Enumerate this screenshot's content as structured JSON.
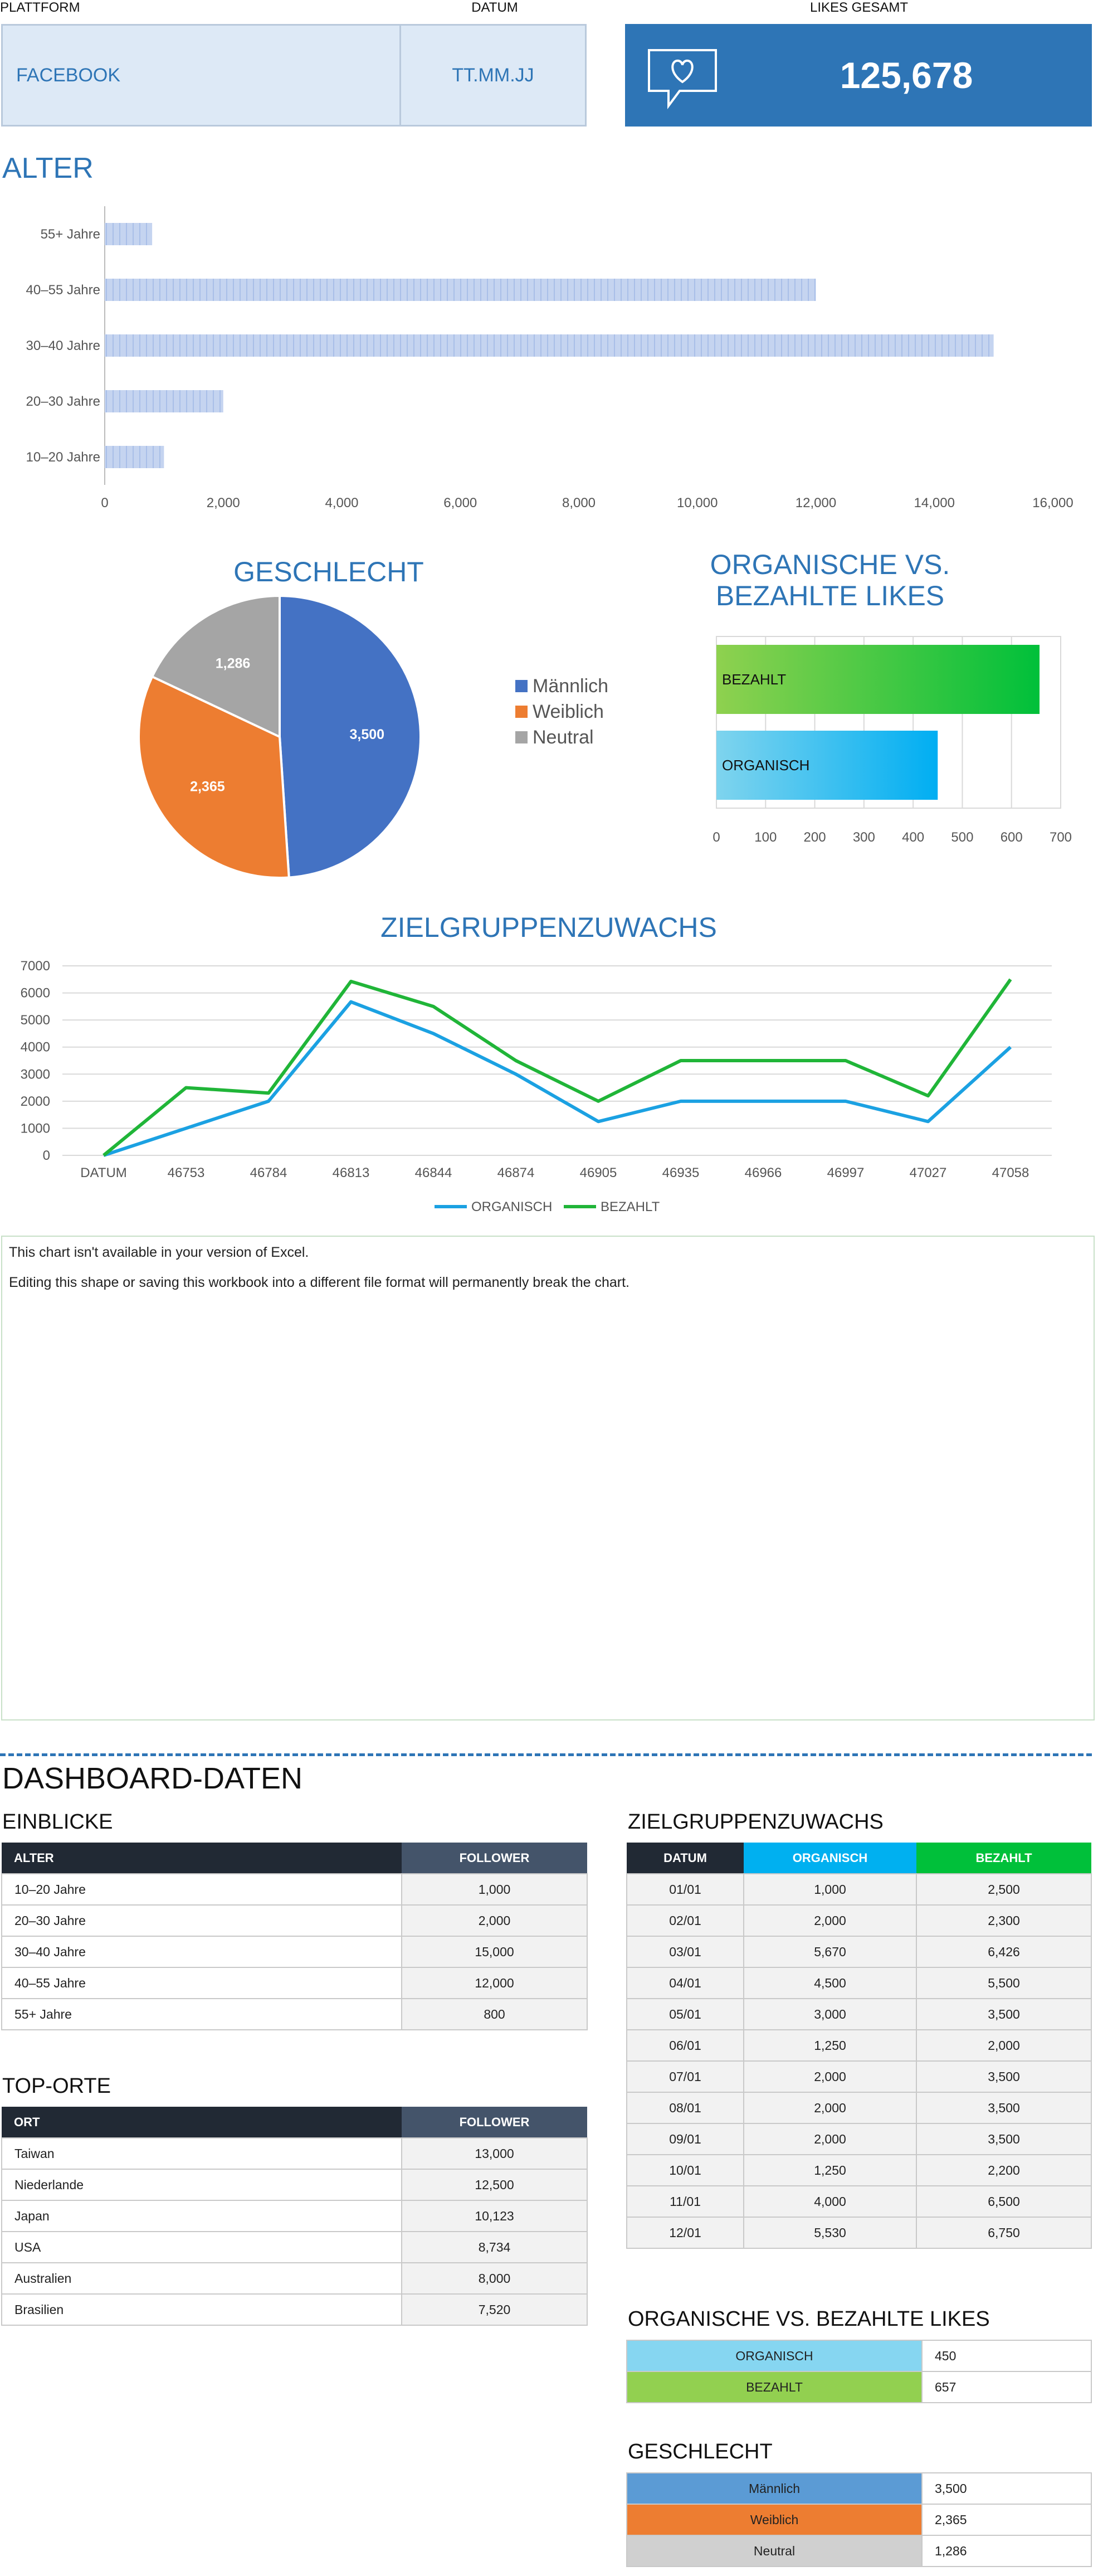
{
  "header": {
    "platform_label": "PLATTFORM",
    "date_label": "DATUM",
    "likes_label": "LIKES GESAMT",
    "platform_value": "FACEBOOK",
    "date_value": "TT.MM.JJ",
    "likes_value": "125,678",
    "likes_icon": "heart-speech-bubble-icon"
  },
  "colors": {
    "accent": "#2e75b6",
    "kpi_bg": "#dde9f6",
    "dark_header": "#212934",
    "slate_header": "#44546a",
    "organic_line": "#1ba1e2",
    "paid_line": "#20b538"
  },
  "chart_data": [
    {
      "type": "bar",
      "orientation": "horizontal",
      "title": "ALTER",
      "categories": [
        "10–20 Jahre",
        "20–30 Jahre",
        "30–40 Jahre",
        "40–55 Jahre",
        "55+ Jahre"
      ],
      "values": [
        1000,
        2000,
        15000,
        12000,
        800
      ],
      "xlim": [
        0,
        16000
      ],
      "xticks": [
        "0",
        "2,000",
        "4,000",
        "6,000",
        "8,000",
        "10,000",
        "12,000",
        "14,000",
        "16,000"
      ]
    },
    {
      "type": "pie",
      "title": "GESCHLECHT",
      "labels": [
        "Männlich",
        "Weiblich",
        "Neutral"
      ],
      "values": [
        3500,
        2365,
        1286
      ],
      "value_labels": [
        "3,500",
        "2,365",
        "1,286"
      ],
      "colors": [
        "#4472c4",
        "#ed7d31",
        "#a5a5a5"
      ],
      "legend": "right"
    },
    {
      "type": "bar",
      "orientation": "horizontal",
      "title": "ORGANISCHE VS. BEZAHLTE LIKES",
      "categories": [
        "ORGANISCH",
        "BEZAHLT"
      ],
      "values": [
        450,
        657
      ],
      "xlim": [
        0,
        700
      ],
      "xticks": [
        "0",
        "100",
        "200",
        "300",
        "400",
        "500",
        "600",
        "700"
      ]
    },
    {
      "type": "line",
      "title": "ZIELGRUPPENZUWACHS",
      "categories": [
        "DATUM",
        "46753",
        "46784",
        "46813",
        "46844",
        "46874",
        "46905",
        "46935",
        "46966",
        "46997",
        "47027",
        "47058"
      ],
      "series": [
        {
          "name": "ORGANISCH",
          "values": [
            0,
            1000,
            2000,
            5670,
            4500,
            3000,
            1250,
            2000,
            2000,
            2000,
            1250,
            4000
          ],
          "color": "#1ba1e2"
        },
        {
          "name": "BEZAHLT",
          "values": [
            0,
            2500,
            2300,
            6426,
            5500,
            3500,
            2000,
            3500,
            3500,
            3500,
            2200,
            6500
          ],
          "color": "#20b538"
        }
      ],
      "ylim": [
        0,
        7000
      ],
      "yticks": [
        "0",
        "1000",
        "2000",
        "3000",
        "4000",
        "5000",
        "6000",
        "7000"
      ],
      "legend": "bottom"
    }
  ],
  "unavailable_chart": {
    "line1": "This chart isn't available in your version of Excel.",
    "line2": "Editing this shape or saving this workbook into a different file format will permanently break the chart."
  },
  "dashboard": {
    "title": "DASHBOARD-DATEN",
    "insights": {
      "title": "EINBLICKE",
      "headers": [
        "ALTER",
        "FOLLOWER"
      ],
      "rows": [
        [
          "10–20 Jahre",
          "1,000"
        ],
        [
          "20–30 Jahre",
          "2,000"
        ],
        [
          "30–40 Jahre",
          "15,000"
        ],
        [
          "40–55 Jahre",
          "12,000"
        ],
        [
          "55+ Jahre",
          "800"
        ]
      ]
    },
    "top_places": {
      "title": "TOP-ORTE",
      "headers": [
        "ORT",
        "FOLLOWER"
      ],
      "rows": [
        [
          "Taiwan",
          "13,000"
        ],
        [
          "Niederlande",
          "12,500"
        ],
        [
          "Japan",
          "10,123"
        ],
        [
          "USA",
          "8,734"
        ],
        [
          "Australien",
          "8,000"
        ],
        [
          "Brasilien",
          "7,520"
        ]
      ]
    },
    "growth": {
      "title": "ZIELGRUPPENZUWACHS",
      "headers": [
        "DATUM",
        "ORGANISCH",
        "BEZAHLT"
      ],
      "rows": [
        [
          "01/01",
          "1,000",
          "2,500"
        ],
        [
          "02/01",
          "2,000",
          "2,300"
        ],
        [
          "03/01",
          "5,670",
          "6,426"
        ],
        [
          "04/01",
          "4,500",
          "5,500"
        ],
        [
          "05/01",
          "3,000",
          "3,500"
        ],
        [
          "06/01",
          "1,250",
          "2,000"
        ],
        [
          "07/01",
          "2,000",
          "3,500"
        ],
        [
          "08/01",
          "2,000",
          "3,500"
        ],
        [
          "09/01",
          "2,000",
          "3,500"
        ],
        [
          "10/01",
          "1,250",
          "2,200"
        ],
        [
          "11/01",
          "4,000",
          "6,500"
        ],
        [
          "12/01",
          "5,530",
          "6,750"
        ]
      ]
    },
    "organic_paid": {
      "title": "ORGANISCHE VS. BEZAHLTE LIKES",
      "rows": [
        [
          "ORGANISCH",
          "450"
        ],
        [
          "BEZAHLT",
          "657"
        ]
      ]
    },
    "gender": {
      "title": "GESCHLECHT",
      "rows": [
        [
          "Männlich",
          "3,500"
        ],
        [
          "Weiblich",
          "2,365"
        ],
        [
          "Neutral",
          "1,286"
        ]
      ]
    }
  }
}
